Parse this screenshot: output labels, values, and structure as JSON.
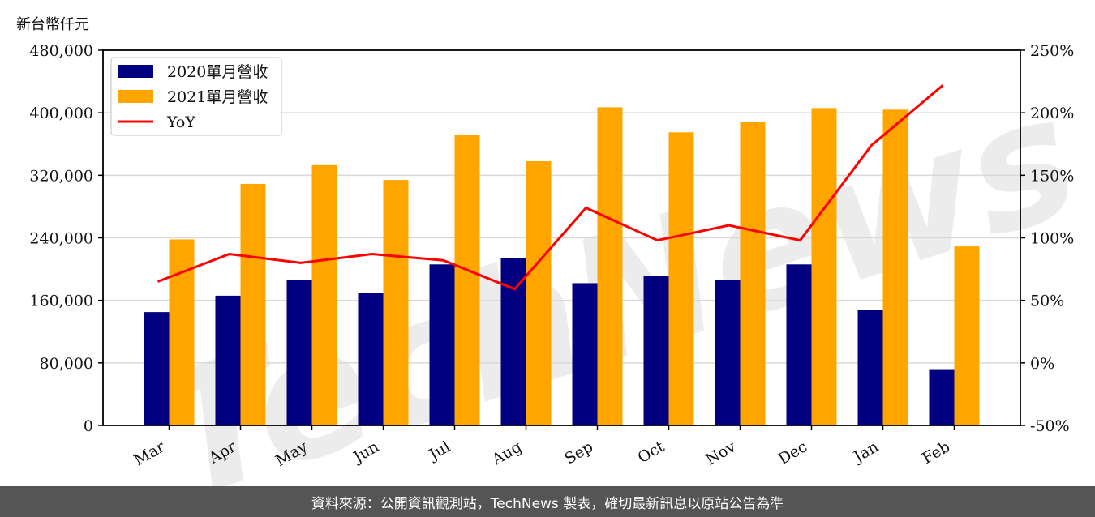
{
  "unit_label": "新台幣仟元",
  "footer_text": "資料來源：公開資訊觀測站，TechNews 製表，確切最新訊息以原站公告為準",
  "watermark": "TechNews",
  "colors": {
    "series_2020": "#000080",
    "series_2021": "#FFA500",
    "yoy": "#FF0000",
    "grid": "#d9d9d9",
    "footer_bg": "#555555"
  },
  "legend": [
    {
      "label": "2020單月營收",
      "type": "bar",
      "color": "#000080"
    },
    {
      "label": "2021單月營收",
      "type": "bar",
      "color": "#FFA500"
    },
    {
      "label": "YoY",
      "type": "line",
      "color": "#FF0000"
    }
  ],
  "chart_data": {
    "type": "bar",
    "title": "",
    "xlabel": "",
    "ylabel": "新台幣仟元",
    "categories": [
      "Mar",
      "Apr",
      "May",
      "Jun",
      "Jul",
      "Aug",
      "Sep",
      "Oct",
      "Nov",
      "Dec",
      "Jan",
      "Feb"
    ],
    "series": [
      {
        "name": "2020單月營收",
        "type": "bar",
        "axis": "left",
        "values": [
          145000,
          166000,
          186000,
          169000,
          206000,
          214000,
          182000,
          191000,
          186000,
          206000,
          148000,
          72000
        ]
      },
      {
        "name": "2021單月營收",
        "type": "bar",
        "axis": "left",
        "values": [
          238000,
          309000,
          333000,
          314000,
          372000,
          338000,
          407000,
          375000,
          388000,
          406000,
          404000,
          229000
        ]
      },
      {
        "name": "YoY",
        "type": "line",
        "axis": "right",
        "unit": "%",
        "values": [
          65,
          87,
          80,
          87,
          82,
          59,
          124,
          98,
          110,
          98,
          174,
          222
        ]
      }
    ],
    "ylim": [
      0,
      480000
    ],
    "yticks": [
      "0",
      "80,000",
      "160,000",
      "240,000",
      "320,000",
      "400,000",
      "480,000"
    ],
    "y2lim": [
      -50,
      250
    ],
    "y2ticks": [
      "-50%",
      "0%",
      "50%",
      "100%",
      "150%",
      "200%",
      "250%"
    ],
    "grid": true,
    "legend_position": "upper left"
  }
}
